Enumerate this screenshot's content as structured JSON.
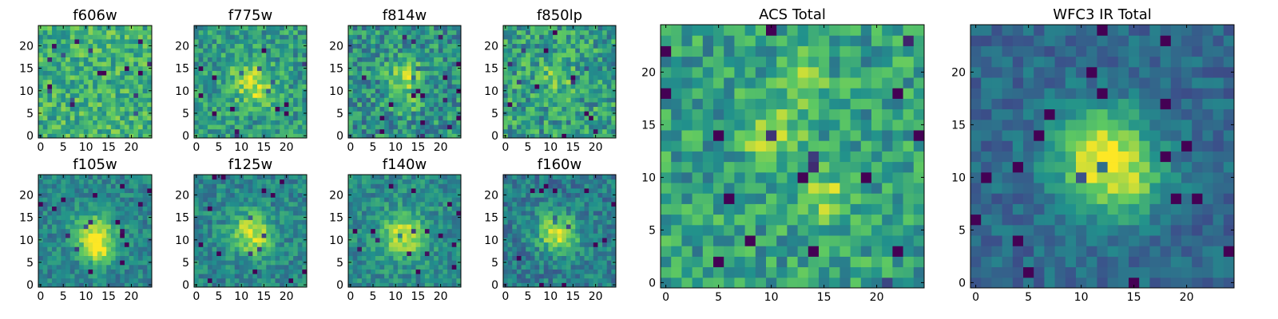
{
  "chart_data": [
    {
      "type": "heatmap",
      "title": "f606w",
      "grid": "25x25",
      "colormap": "viridis",
      "xlim": [
        0,
        24
      ],
      "ylim": [
        0,
        24
      ],
      "xticks": [
        0,
        5,
        10,
        15,
        20
      ],
      "yticks": [
        0,
        5,
        10,
        15,
        20
      ],
      "note": "noisy, mostly green-yellow"
    },
    {
      "type": "heatmap",
      "title": "f775w",
      "grid": "25x25",
      "colormap": "viridis",
      "xlim": [
        0,
        24
      ],
      "ylim": [
        0,
        24
      ],
      "xticks": [
        0,
        5,
        10,
        15,
        20
      ],
      "yticks": [
        0,
        5,
        10,
        15,
        20
      ]
    },
    {
      "type": "heatmap",
      "title": "f814w",
      "grid": "25x25",
      "colormap": "viridis",
      "xlim": [
        0,
        24
      ],
      "ylim": [
        0,
        24
      ],
      "xticks": [
        0,
        5,
        10,
        15,
        20
      ],
      "yticks": [
        0,
        5,
        10,
        15,
        20
      ]
    },
    {
      "type": "heatmap",
      "title": "f850lp",
      "grid": "25x25",
      "colormap": "viridis",
      "xlim": [
        0,
        24
      ],
      "ylim": [
        0,
        24
      ],
      "xticks": [
        0,
        5,
        10,
        15,
        20
      ],
      "yticks": [
        0,
        5,
        10,
        15,
        20
      ]
    },
    {
      "type": "heatmap",
      "title": "f105w",
      "grid": "25x25",
      "colormap": "viridis",
      "xlim": [
        0,
        24
      ],
      "ylim": [
        0,
        24
      ],
      "xticks": [
        0,
        5,
        10,
        15,
        20
      ],
      "yticks": [
        0,
        5,
        10,
        15,
        20
      ],
      "peak": [
        12,
        11
      ]
    },
    {
      "type": "heatmap",
      "title": "f125w",
      "grid": "25x25",
      "colormap": "viridis",
      "xlim": [
        0,
        24
      ],
      "ylim": [
        0,
        24
      ],
      "xticks": [
        0,
        5,
        10,
        15,
        20
      ],
      "yticks": [
        0,
        5,
        10,
        15,
        20
      ],
      "peak": [
        12,
        12
      ]
    },
    {
      "type": "heatmap",
      "title": "f140w",
      "grid": "25x25",
      "colormap": "viridis",
      "xlim": [
        0,
        24
      ],
      "ylim": [
        0,
        24
      ],
      "xticks": [
        0,
        5,
        10,
        15,
        20
      ],
      "yticks": [
        0,
        5,
        10,
        15,
        20
      ],
      "peak": [
        12,
        11
      ]
    },
    {
      "type": "heatmap",
      "title": "f160w",
      "grid": "25x25",
      "colormap": "viridis",
      "xlim": [
        0,
        24
      ],
      "ylim": [
        0,
        24
      ],
      "xticks": [
        0,
        5,
        10,
        15,
        20
      ],
      "yticks": [
        0,
        5,
        10,
        15,
        20
      ],
      "peak": [
        11,
        12
      ]
    },
    {
      "type": "heatmap",
      "title": "ACS Total",
      "grid": "25x25",
      "colormap": "viridis",
      "xlim": [
        0,
        24
      ],
      "ylim": [
        0,
        24
      ],
      "xticks": [
        0,
        5,
        10,
        15,
        20
      ],
      "yticks": [
        0,
        5,
        10,
        15,
        20
      ]
    },
    {
      "type": "heatmap",
      "title": "WFC3 IR Total",
      "grid": "25x25",
      "colormap": "viridis",
      "xlim": [
        0,
        24
      ],
      "ylim": [
        0,
        24
      ],
      "xticks": [
        0,
        5,
        10,
        15,
        20
      ],
      "yticks": [
        0,
        5,
        10,
        15,
        20
      ],
      "peak": [
        12,
        12
      ]
    }
  ]
}
